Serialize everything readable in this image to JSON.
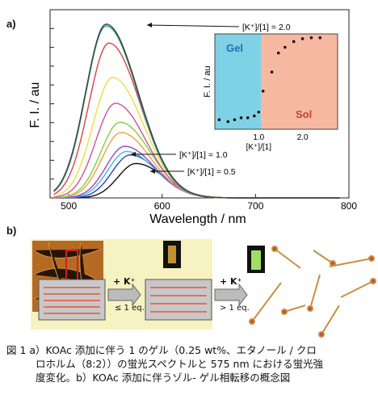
{
  "panel_a_label": "a)",
  "panel_b_label": "b)",
  "chart_data": {
    "type": "line",
    "xlabel": "Wavelength / nm",
    "ylabel": "F. I. / au",
    "xlim": [
      480,
      800
    ],
    "x_ticks": [
      500,
      600,
      700,
      800
    ],
    "annotations": [
      "[K⁺]/[1] = 2.0",
      "[K⁺]/[1] = 1.0",
      "[K⁺]/[1] = 0.5"
    ],
    "series": [
      {
        "color": "#111111",
        "peak_x": 572,
        "peak_y": 0.2
      },
      {
        "color": "#3040c0",
        "peak_x": 566,
        "peak_y": 0.25
      },
      {
        "color": "#3cc0d0",
        "peak_x": 562,
        "peak_y": 0.27
      },
      {
        "color": "#a040d0",
        "peak_x": 560,
        "peak_y": 0.3
      },
      {
        "color": "#f0a040",
        "peak_x": 556,
        "peak_y": 0.38
      },
      {
        "color": "#80d040",
        "peak_x": 555,
        "peak_y": 0.44
      },
      {
        "color": "#d050a0",
        "peak_x": 550,
        "peak_y": 0.55
      },
      {
        "color": "#e8e040",
        "peak_x": 547,
        "peak_y": 0.7
      },
      {
        "color": "#e04040",
        "peak_x": 543,
        "peak_y": 0.9
      },
      {
        "color": "#20a080",
        "peak_x": 540,
        "peak_y": 1.0
      },
      {
        "color": "#404040",
        "peak_x": 540,
        "peak_y": 1.01
      }
    ],
    "inset": {
      "type": "scatter",
      "ylabel": "F. I. / au",
      "xlabel": "[K⁺]/[1]",
      "x_ticks": [
        "1.0",
        "2.0"
      ],
      "xlim": [
        0,
        2.8
      ],
      "ylim": [
        0,
        1
      ],
      "regions": [
        {
          "label": "Gel",
          "color": "#7fd2e6",
          "x_range": [
            0,
            1.05
          ]
        },
        {
          "label": "Sol",
          "color": "#f6b8a0",
          "x_range": [
            1.05,
            2.8
          ]
        }
      ],
      "points": [
        {
          "x": 0.1,
          "y": 0.1
        },
        {
          "x": 0.3,
          "y": 0.08
        },
        {
          "x": 0.45,
          "y": 0.1
        },
        {
          "x": 0.6,
          "y": 0.12
        },
        {
          "x": 0.75,
          "y": 0.12
        },
        {
          "x": 0.9,
          "y": 0.14
        },
        {
          "x": 1.0,
          "y": 0.18
        },
        {
          "x": 1.1,
          "y": 0.4
        },
        {
          "x": 1.3,
          "y": 0.6
        },
        {
          "x": 1.45,
          "y": 0.8
        },
        {
          "x": 1.6,
          "y": 0.86
        },
        {
          "x": 1.8,
          "y": 0.92
        },
        {
          "x": 2.0,
          "y": 0.95
        },
        {
          "x": 2.2,
          "y": 0.96
        },
        {
          "x": 2.4,
          "y": 0.96
        }
      ]
    }
  },
  "panel_b": {
    "arrow1_top": "+ K⁺",
    "arrow1_bottom": "≤ 1 eq.",
    "arrow2_top": "+ K⁺",
    "arrow2_bottom": "> 1 eq."
  },
  "caption": {
    "line1": "図 1  a）KOAc 添加に伴う 1 のゲル（0.25 wt%、エタノール / クロ",
    "line2": "ロホルム（8:2））の蛍光スペクトルと 575 nm における蛍光強",
    "line3": "度変化。b）KOAc 添加に伴うゾル- ゲル相転移の概念図"
  }
}
